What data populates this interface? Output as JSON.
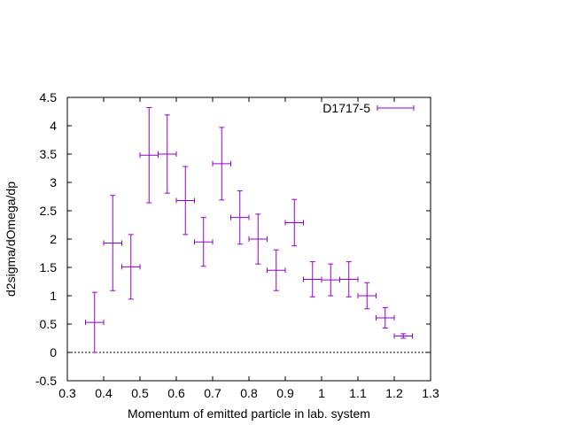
{
  "chart_data": {
    "type": "scatter",
    "title": "",
    "xlabel": "Momentum of emitted particle in lab. system",
    "ylabel": "d2sigma/dOmega/dp",
    "xlim": [
      0.3,
      1.3
    ],
    "ylim": [
      -0.5,
      4.5
    ],
    "xticks": [
      "0.3",
      "0.4",
      "0.5",
      "0.6",
      "0.7",
      "0.8",
      "0.9",
      "1",
      "1.1",
      "1.2",
      "1.3"
    ],
    "yticks": [
      "-0.5",
      "0",
      "0.5",
      "1",
      "1.5",
      "2",
      "2.5",
      "3",
      "3.5",
      "4",
      "4.5"
    ],
    "zero_line": true,
    "grid": false,
    "legend_position": "top-right",
    "series": [
      {
        "name": "D1717-5",
        "color": "#9400d3",
        "points": [
          {
            "x": 0.375,
            "xerr": 0.025,
            "y": 0.53,
            "yerr": 0.53
          },
          {
            "x": 0.425,
            "xerr": 0.025,
            "y": 1.93,
            "yerr": 0.84
          },
          {
            "x": 0.475,
            "xerr": 0.025,
            "y": 1.51,
            "yerr": 0.57
          },
          {
            "x": 0.525,
            "xerr": 0.025,
            "y": 3.48,
            "yerr": 0.84
          },
          {
            "x": 0.575,
            "xerr": 0.025,
            "y": 3.5,
            "yerr": 0.69
          },
          {
            "x": 0.625,
            "xerr": 0.025,
            "y": 2.68,
            "yerr": 0.6
          },
          {
            "x": 0.675,
            "xerr": 0.025,
            "y": 1.95,
            "yerr": 0.43
          },
          {
            "x": 0.725,
            "xerr": 0.025,
            "y": 3.33,
            "yerr": 0.64
          },
          {
            "x": 0.775,
            "xerr": 0.025,
            "y": 2.38,
            "yerr": 0.47
          },
          {
            "x": 0.825,
            "xerr": 0.025,
            "y": 2.0,
            "yerr": 0.44
          },
          {
            "x": 0.875,
            "xerr": 0.025,
            "y": 1.45,
            "yerr": 0.36
          },
          {
            "x": 0.925,
            "xerr": 0.025,
            "y": 2.29,
            "yerr": 0.41
          },
          {
            "x": 0.975,
            "xerr": 0.025,
            "y": 1.29,
            "yerr": 0.31
          },
          {
            "x": 1.025,
            "xerr": 0.025,
            "y": 1.28,
            "yerr": 0.28
          },
          {
            "x": 1.075,
            "xerr": 0.025,
            "y": 1.29,
            "yerr": 0.31
          },
          {
            "x": 1.125,
            "xerr": 0.025,
            "y": 1.0,
            "yerr": 0.23
          },
          {
            "x": 1.175,
            "xerr": 0.025,
            "y": 0.61,
            "yerr": 0.18
          },
          {
            "x": 1.225,
            "xerr": 0.025,
            "y": 0.29,
            "yerr": 0.04
          }
        ]
      }
    ]
  }
}
